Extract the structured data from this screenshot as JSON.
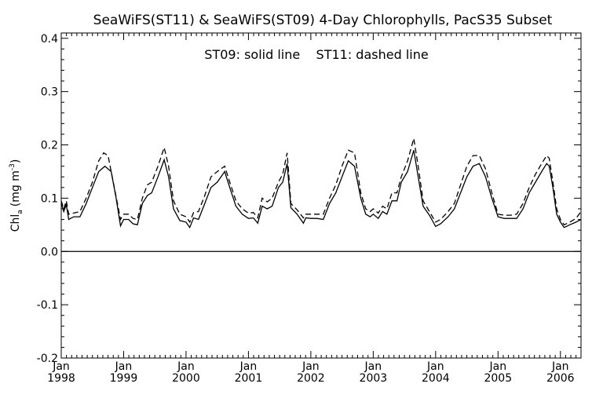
{
  "chart_data": {
    "type": "line",
    "title": "SeaWiFS(ST11) & SeaWiFS(ST09) 4-Day Chlorophylls, PacS35 Subset",
    "annotation": "ST09: solid line    ST11: dashed line",
    "ylabel_main": "Chl",
    "ylabel_sub": "a",
    "ylabel_units": "(mg m",
    "ylabel_exp": "-3",
    "ylabel_close": ")",
    "xlabel": "",
    "xlim": [
      1998.0,
      2006.33
    ],
    "ylim": [
      -0.2,
      0.41
    ],
    "y_ticks": [
      {
        "v": -0.2,
        "label": "-0.2"
      },
      {
        "v": -0.1,
        "label": "-0.1"
      },
      {
        "v": 0.0,
        "label": "0.0"
      },
      {
        "v": 0.1,
        "label": "0.1"
      },
      {
        "v": 0.2,
        "label": "0.2"
      },
      {
        "v": 0.3,
        "label": "0.3"
      },
      {
        "v": 0.4,
        "label": "0.4"
      }
    ],
    "x_ticks": [
      {
        "v": 1998.0,
        "month": "Jan",
        "year": "1998"
      },
      {
        "v": 1999.0,
        "month": "Jan",
        "year": "1999"
      },
      {
        "v": 2000.0,
        "month": "Jan",
        "year": "2000"
      },
      {
        "v": 2001.0,
        "month": "Jan",
        "year": "2001"
      },
      {
        "v": 2002.0,
        "month": "Jan",
        "year": "2002"
      },
      {
        "v": 2003.0,
        "month": "Jan",
        "year": "2003"
      },
      {
        "v": 2004.0,
        "month": "Jan",
        "year": "2004"
      },
      {
        "v": 2005.0,
        "month": "Jan",
        "year": "2005"
      },
      {
        "v": 2006.0,
        "month": "Jan",
        "year": "2006"
      }
    ],
    "zero_line": 0.0,
    "grid": false,
    "series": [
      {
        "name": "ST09",
        "style": "solid",
        "points": [
          [
            1998.0,
            0.09
          ],
          [
            1998.04,
            0.075
          ],
          [
            1998.08,
            0.088
          ],
          [
            1998.12,
            0.06
          ],
          [
            1998.2,
            0.065
          ],
          [
            1998.3,
            0.065
          ],
          [
            1998.4,
            0.09
          ],
          [
            1998.5,
            0.12
          ],
          [
            1998.6,
            0.15
          ],
          [
            1998.7,
            0.16
          ],
          [
            1998.8,
            0.15
          ],
          [
            1998.88,
            0.1
          ],
          [
            1998.95,
            0.048
          ],
          [
            1999.0,
            0.06
          ],
          [
            1999.08,
            0.06
          ],
          [
            1999.15,
            0.052
          ],
          [
            1999.22,
            0.05
          ],
          [
            1999.3,
            0.09
          ],
          [
            1999.38,
            0.105
          ],
          [
            1999.45,
            0.11
          ],
          [
            1999.55,
            0.14
          ],
          [
            1999.65,
            0.172
          ],
          [
            1999.72,
            0.14
          ],
          [
            1999.8,
            0.08
          ],
          [
            1999.9,
            0.058
          ],
          [
            2000.0,
            0.055
          ],
          [
            2000.06,
            0.045
          ],
          [
            2000.12,
            0.063
          ],
          [
            2000.2,
            0.06
          ],
          [
            2000.3,
            0.09
          ],
          [
            2000.4,
            0.12
          ],
          [
            2000.5,
            0.13
          ],
          [
            2000.62,
            0.15
          ],
          [
            2000.7,
            0.12
          ],
          [
            2000.8,
            0.085
          ],
          [
            2000.9,
            0.07
          ],
          [
            2001.0,
            0.062
          ],
          [
            2001.08,
            0.063
          ],
          [
            2001.15,
            0.053
          ],
          [
            2001.22,
            0.085
          ],
          [
            2001.3,
            0.08
          ],
          [
            2001.38,
            0.085
          ],
          [
            2001.48,
            0.12
          ],
          [
            2001.55,
            0.13
          ],
          [
            2001.62,
            0.165
          ],
          [
            2001.68,
            0.082
          ],
          [
            2001.78,
            0.07
          ],
          [
            2001.88,
            0.053
          ],
          [
            2001.92,
            0.063
          ],
          [
            2002.0,
            0.062
          ],
          [
            2002.1,
            0.062
          ],
          [
            2002.2,
            0.06
          ],
          [
            2002.3,
            0.09
          ],
          [
            2002.4,
            0.11
          ],
          [
            2002.5,
            0.14
          ],
          [
            2002.6,
            0.17
          ],
          [
            2002.7,
            0.16
          ],
          [
            2002.8,
            0.1
          ],
          [
            2002.88,
            0.07
          ],
          [
            2002.95,
            0.065
          ],
          [
            2003.0,
            0.07
          ],
          [
            2003.08,
            0.062
          ],
          [
            2003.15,
            0.075
          ],
          [
            2003.22,
            0.07
          ],
          [
            2003.3,
            0.095
          ],
          [
            2003.38,
            0.095
          ],
          [
            2003.45,
            0.13
          ],
          [
            2003.55,
            0.15
          ],
          [
            2003.65,
            0.19
          ],
          [
            2003.72,
            0.14
          ],
          [
            2003.8,
            0.085
          ],
          [
            2003.9,
            0.068
          ],
          [
            2004.0,
            0.047
          ],
          [
            2004.08,
            0.052
          ],
          [
            2004.2,
            0.065
          ],
          [
            2004.3,
            0.08
          ],
          [
            2004.4,
            0.11
          ],
          [
            2004.5,
            0.14
          ],
          [
            2004.6,
            0.16
          ],
          [
            2004.7,
            0.165
          ],
          [
            2004.8,
            0.14
          ],
          [
            2004.9,
            0.1
          ],
          [
            2005.0,
            0.065
          ],
          [
            2005.1,
            0.062
          ],
          [
            2005.2,
            0.062
          ],
          [
            2005.3,
            0.062
          ],
          [
            2005.4,
            0.08
          ],
          [
            2005.5,
            0.11
          ],
          [
            2005.6,
            0.13
          ],
          [
            2005.7,
            0.15
          ],
          [
            2005.78,
            0.165
          ],
          [
            2005.82,
            0.16
          ],
          [
            2005.88,
            0.12
          ],
          [
            2005.94,
            0.07
          ],
          [
            2006.0,
            0.055
          ],
          [
            2006.06,
            0.045
          ],
          [
            2006.15,
            0.05
          ],
          [
            2006.25,
            0.055
          ],
          [
            2006.33,
            0.06
          ]
        ]
      },
      {
        "name": "ST11",
        "style": "dashed",
        "points": [
          [
            1998.0,
            0.095
          ],
          [
            1998.04,
            0.08
          ],
          [
            1998.08,
            0.095
          ],
          [
            1998.12,
            0.07
          ],
          [
            1998.2,
            0.072
          ],
          [
            1998.3,
            0.075
          ],
          [
            1998.4,
            0.1
          ],
          [
            1998.5,
            0.13
          ],
          [
            1998.6,
            0.17
          ],
          [
            1998.68,
            0.185
          ],
          [
            1998.75,
            0.18
          ],
          [
            1998.85,
            0.12
          ],
          [
            1998.95,
            0.06
          ],
          [
            1999.0,
            0.07
          ],
          [
            1999.08,
            0.07
          ],
          [
            1999.15,
            0.062
          ],
          [
            1999.22,
            0.06
          ],
          [
            1999.3,
            0.1
          ],
          [
            1999.38,
            0.125
          ],
          [
            1999.45,
            0.13
          ],
          [
            1999.55,
            0.16
          ],
          [
            1999.65,
            0.195
          ],
          [
            1999.72,
            0.16
          ],
          [
            1999.8,
            0.095
          ],
          [
            1999.9,
            0.07
          ],
          [
            2000.0,
            0.065
          ],
          [
            2000.06,
            0.055
          ],
          [
            2000.12,
            0.073
          ],
          [
            2000.2,
            0.075
          ],
          [
            2000.3,
            0.105
          ],
          [
            2000.4,
            0.14
          ],
          [
            2000.5,
            0.15
          ],
          [
            2000.62,
            0.16
          ],
          [
            2000.7,
            0.13
          ],
          [
            2000.8,
            0.095
          ],
          [
            2000.9,
            0.08
          ],
          [
            2001.0,
            0.072
          ],
          [
            2001.08,
            0.073
          ],
          [
            2001.15,
            0.063
          ],
          [
            2001.22,
            0.1
          ],
          [
            2001.3,
            0.093
          ],
          [
            2001.38,
            0.1
          ],
          [
            2001.48,
            0.13
          ],
          [
            2001.55,
            0.145
          ],
          [
            2001.62,
            0.185
          ],
          [
            2001.68,
            0.09
          ],
          [
            2001.78,
            0.078
          ],
          [
            2001.88,
            0.063
          ],
          [
            2001.92,
            0.07
          ],
          [
            2002.0,
            0.07
          ],
          [
            2002.1,
            0.07
          ],
          [
            2002.2,
            0.07
          ],
          [
            2002.3,
            0.1
          ],
          [
            2002.4,
            0.125
          ],
          [
            2002.5,
            0.16
          ],
          [
            2002.6,
            0.19
          ],
          [
            2002.7,
            0.185
          ],
          [
            2002.8,
            0.11
          ],
          [
            2002.88,
            0.08
          ],
          [
            2002.95,
            0.075
          ],
          [
            2003.0,
            0.08
          ],
          [
            2003.08,
            0.072
          ],
          [
            2003.15,
            0.085
          ],
          [
            2003.22,
            0.08
          ],
          [
            2003.3,
            0.11
          ],
          [
            2003.38,
            0.11
          ],
          [
            2003.45,
            0.14
          ],
          [
            2003.55,
            0.17
          ],
          [
            2003.65,
            0.212
          ],
          [
            2003.72,
            0.16
          ],
          [
            2003.8,
            0.095
          ],
          [
            2003.9,
            0.075
          ],
          [
            2004.0,
            0.055
          ],
          [
            2004.08,
            0.06
          ],
          [
            2004.2,
            0.075
          ],
          [
            2004.3,
            0.09
          ],
          [
            2004.4,
            0.125
          ],
          [
            2004.5,
            0.16
          ],
          [
            2004.6,
            0.18
          ],
          [
            2004.7,
            0.18
          ],
          [
            2004.8,
            0.155
          ],
          [
            2004.9,
            0.11
          ],
          [
            2005.0,
            0.07
          ],
          [
            2005.1,
            0.068
          ],
          [
            2005.2,
            0.068
          ],
          [
            2005.3,
            0.07
          ],
          [
            2005.4,
            0.09
          ],
          [
            2005.5,
            0.12
          ],
          [
            2005.6,
            0.145
          ],
          [
            2005.7,
            0.165
          ],
          [
            2005.78,
            0.18
          ],
          [
            2005.82,
            0.175
          ],
          [
            2005.88,
            0.13
          ],
          [
            2005.94,
            0.08
          ],
          [
            2006.0,
            0.06
          ],
          [
            2006.06,
            0.05
          ],
          [
            2006.15,
            0.055
          ],
          [
            2006.25,
            0.062
          ],
          [
            2006.33,
            0.075
          ]
        ]
      }
    ]
  }
}
